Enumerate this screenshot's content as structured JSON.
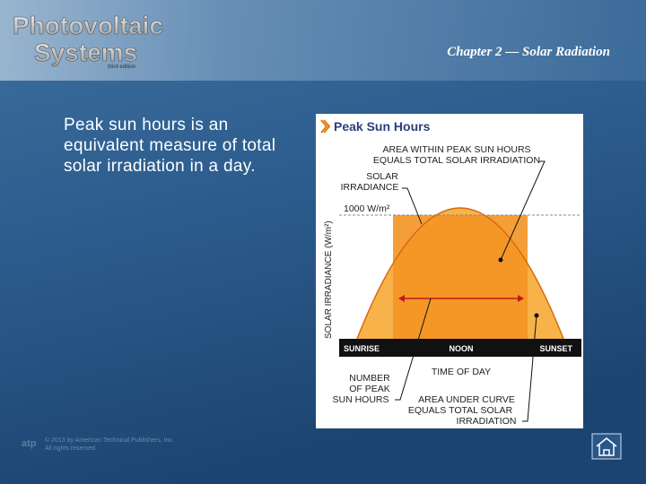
{
  "header": {
    "logo_line1": "Photovoltaic",
    "logo_line2": "Systems",
    "edition": "third edition",
    "chapter": "Chapter 2 — Solar Radiation"
  },
  "body": {
    "text": "Peak sun hours is an equivalent measure of total solar irradiation in a day."
  },
  "figure": {
    "title": "Peak Sun Hours",
    "y_axis_label": "SOLAR IRRADIANCE (W/m²)",
    "level_label": "1000 W/m²",
    "peak_area_label": [
      "AREA WITHIN PEAK SUN HOURS",
      "EQUALS TOTAL SOLAR IRRADIATION"
    ],
    "irradiance_label": [
      "SOLAR",
      "IRRADIANCE"
    ],
    "x_labels": [
      "SUNRISE",
      "NOON",
      "SUNSET"
    ],
    "x_axis_label": "TIME OF DAY",
    "peak_hours_label": [
      "NUMBER",
      "OF PEAK",
      "SUN HOURS"
    ],
    "curve_area_label": [
      "AREA UNDER CURVE",
      "EQUALS TOTAL SOLAR",
      "IRRADIATION"
    ]
  },
  "footer": {
    "logo": "atp",
    "copyright_line1": "© 2013 by American Technical Publishers, Inc.",
    "copyright_line2": "All rights reserved"
  }
}
